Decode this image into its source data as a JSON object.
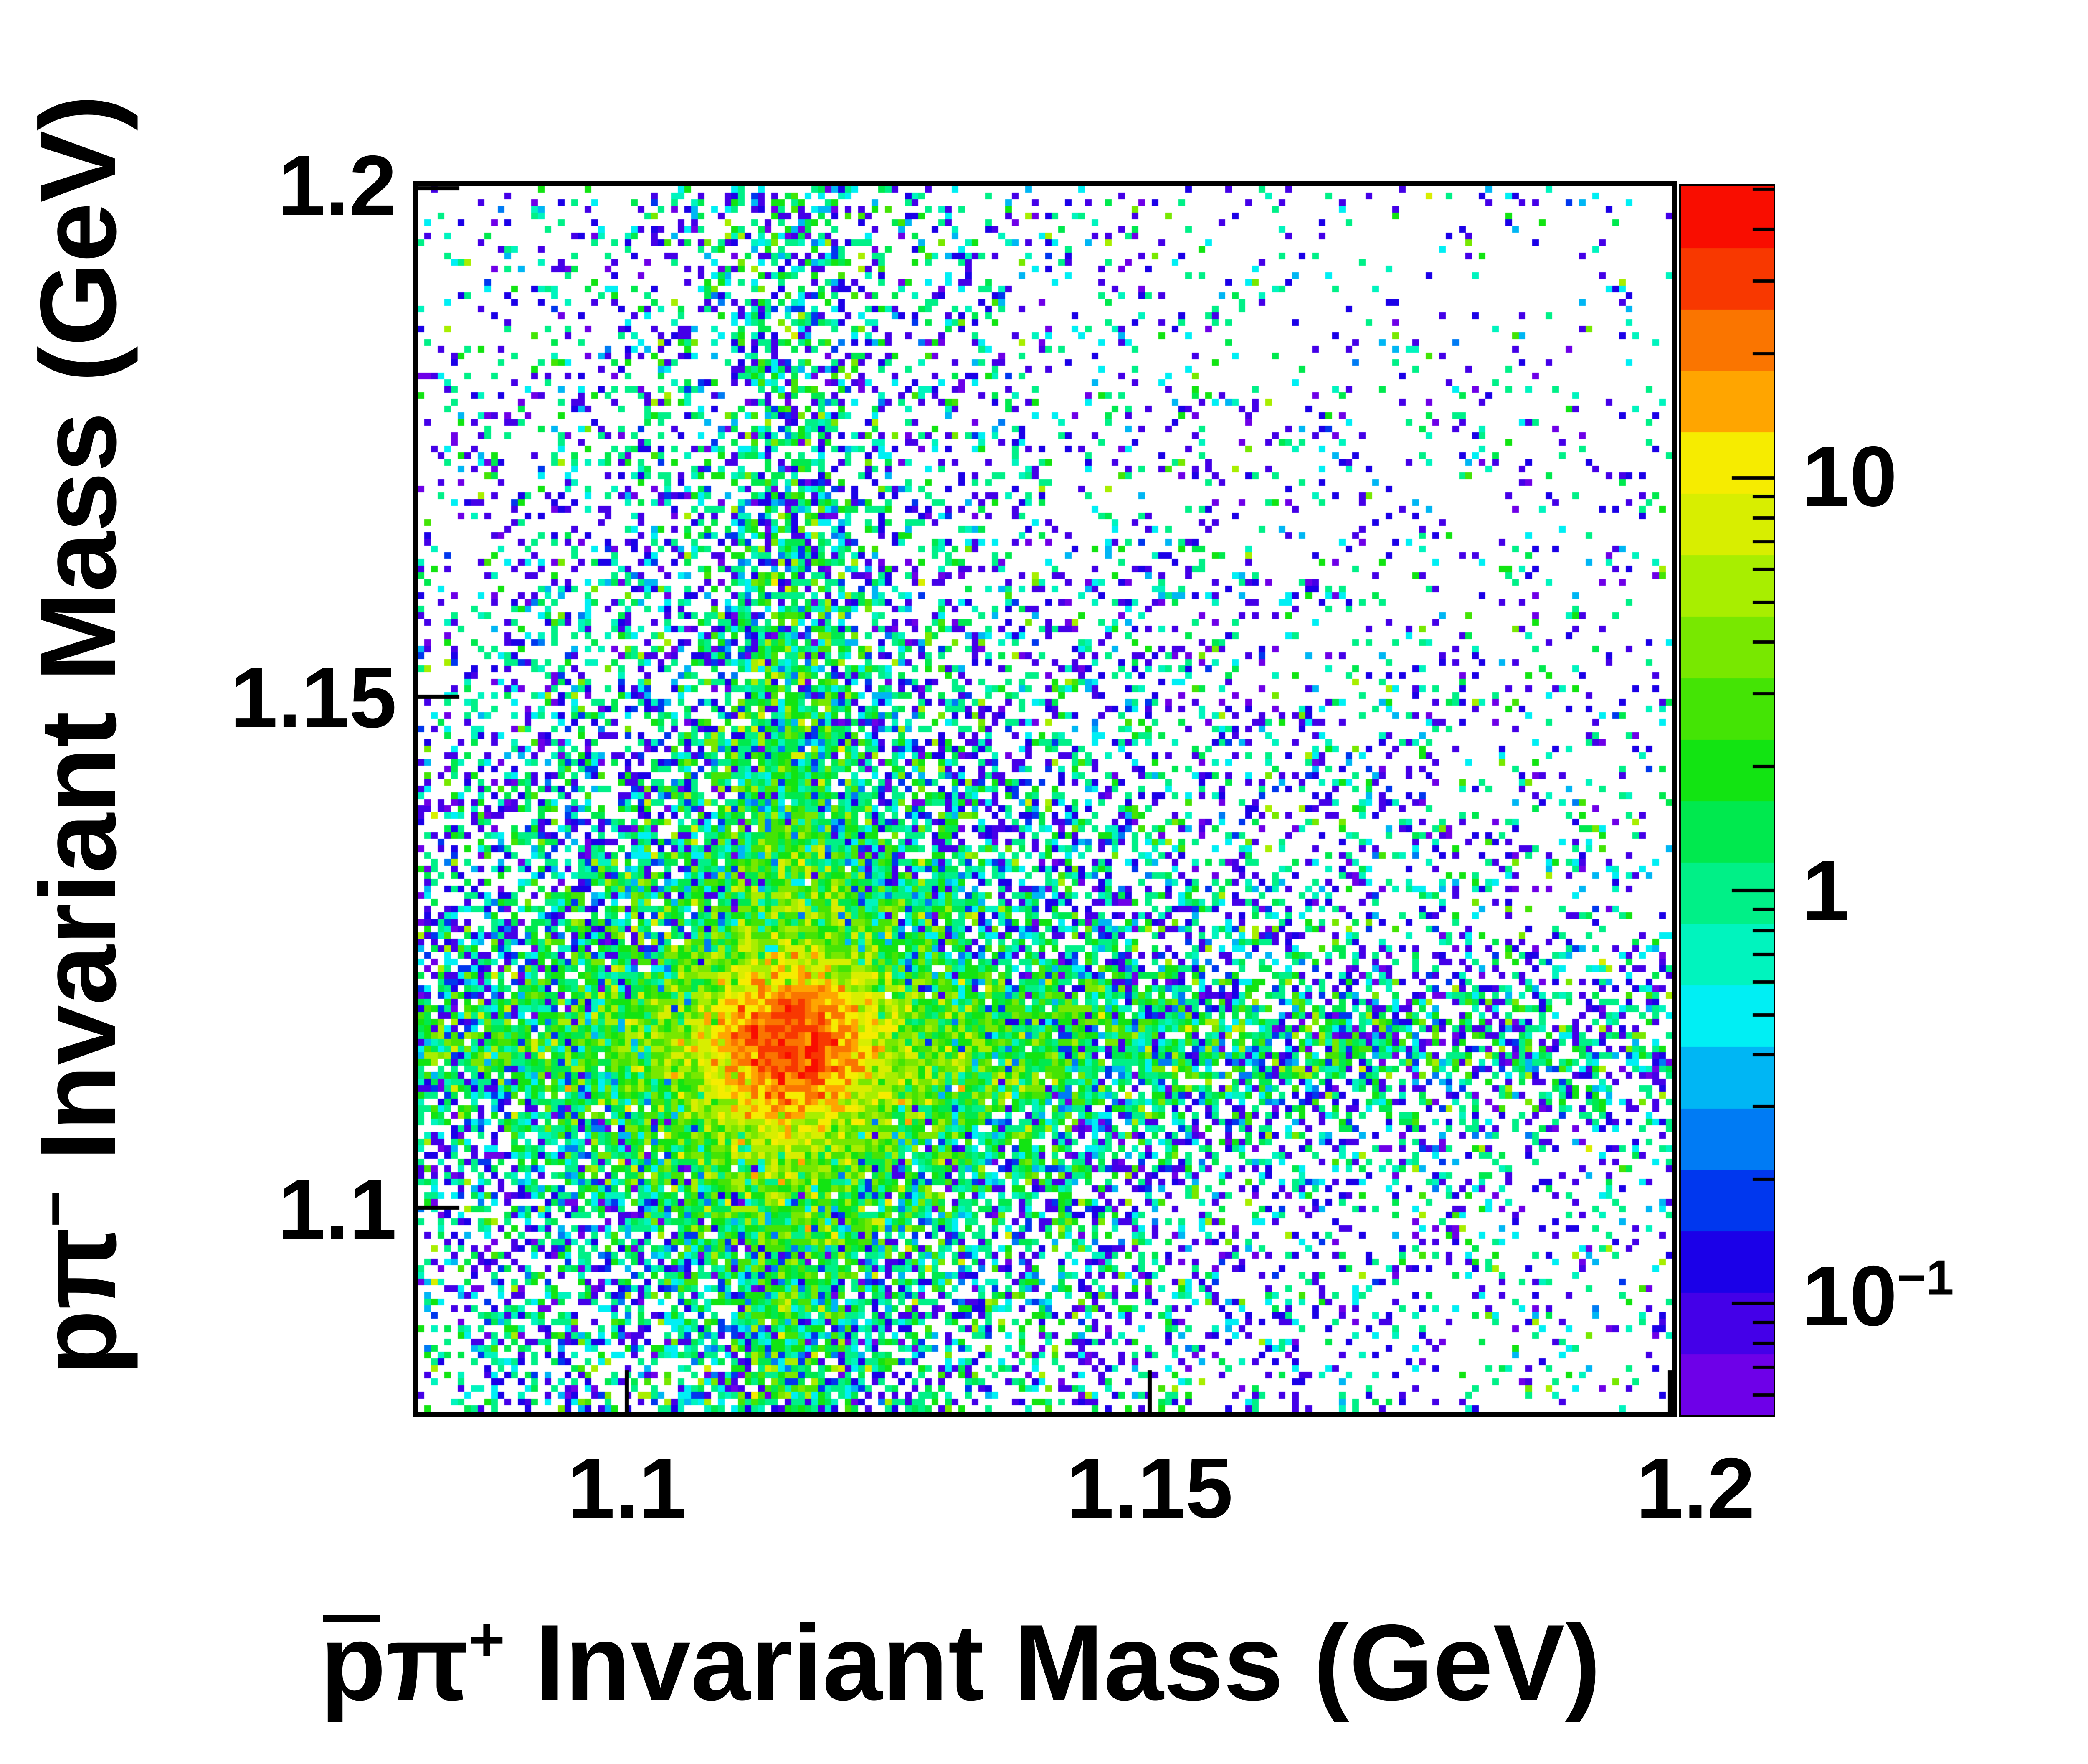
{
  "page": {
    "background": "#ffffff"
  },
  "chart_data": {
    "type": "heatmap",
    "title": "",
    "xlabel": "p̅π⁺ Invariant Mass (GeV)",
    "ylabel": "pπ⁻ Invariant Mass (GeV)",
    "xlabel_parts": {
      "p": "p",
      "pi": "π",
      "sup": "+",
      "rest": " Invariant Mass (GeV)"
    },
    "ylabel_parts": {
      "p": "p",
      "pi": "π",
      "sup": "−",
      "rest": " Invariant Mass (GeV)"
    },
    "x_axis": {
      "range": [
        1.08,
        1.2
      ],
      "unit": "GeV",
      "ticks": [
        {
          "value": 1.1,
          "label": "1.1"
        },
        {
          "value": 1.15,
          "label": "1.15"
        },
        {
          "value": 1.2,
          "label": "1.2"
        }
      ]
    },
    "y_axis": {
      "range": [
        1.08,
        1.2
      ],
      "unit": "GeV",
      "ticks": [
        {
          "value": 1.1,
          "label": "1.1"
        },
        {
          "value": 1.15,
          "label": "1.15"
        },
        {
          "value": 1.2,
          "label": "1.2"
        }
      ]
    },
    "z_axis": {
      "scale": "log",
      "min": 0.0536,
      "max": 51,
      "levels": 20,
      "major_ticks": [
        {
          "value": 10,
          "base": "10",
          "sup": ""
        },
        {
          "value": 1,
          "base": "1",
          "sup": ""
        },
        {
          "value": 0.1,
          "base": "10",
          "sup": "−1"
        }
      ]
    },
    "palette": [
      "#6E00E8",
      "#4400E8",
      "#1B00E8",
      "#0037EE",
      "#007BF4",
      "#00B6F4",
      "#00EFF4",
      "#00F4BE",
      "#00F087",
      "#00E94E",
      "#12E412",
      "#44E405",
      "#78E800",
      "#A8EE00",
      "#D8EE00",
      "#F6EC00",
      "#FFA500",
      "#FA7500",
      "#F83800",
      "#F90D00"
    ],
    "bins": {
      "nx": 188,
      "ny": 184
    },
    "distribution_model": {
      "comment": "intensity model estimated from the pixels; expected entries per bin, event weights give log-color",
      "peak": {
        "x": 1.1157,
        "y": 1.1157
      },
      "components": [
        {
          "type": "gauss2d",
          "amp": 40.0,
          "sx": 0.0042,
          "sy": 0.0042
        },
        {
          "type": "gauss2d",
          "amp": 4.0,
          "sx": 0.01,
          "sy": 0.01
        },
        {
          "type": "gauss2d",
          "amp": 1.2,
          "sx": 0.02,
          "sy": 0.02
        },
        {
          "type": "gauss2d",
          "amp": 0.35,
          "sx": 0.042,
          "sy": 0.042
        },
        {
          "type": "vband",
          "sigma": 0.004,
          "base": 0.45,
          "peak": 2.2,
          "peak_sigma": 0.03
        },
        {
          "type": "hband",
          "sigma": 0.004,
          "base": 0.5,
          "peak": 2.2,
          "peak_sigma": 0.03
        },
        {
          "type": "vridge",
          "amp": 0.22,
          "sigma": 0.016
        },
        {
          "type": "hridge",
          "amp": 0.2,
          "sigma": 0.016
        },
        {
          "type": "uniform",
          "amp": 0.055
        }
      ],
      "event_weight_classes": [
        {
          "w": 0.095,
          "p": 0.48
        },
        {
          "w": 0.95,
          "p": 0.3
        },
        {
          "w": 0.45,
          "p": 0.13
        },
        {
          "w": 1.9,
          "p": 0.06
        },
        {
          "w": 4.5,
          "p": 0.03
        }
      ],
      "seed": 1337
    }
  }
}
